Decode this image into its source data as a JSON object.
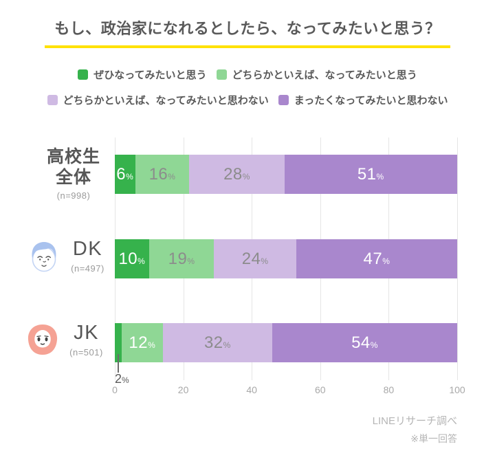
{
  "title": "もし、政治家になれるとしたら、なってみたいと思う？",
  "accent_color": "#ffe100",
  "legend": [
    {
      "label": "ぜひなってみたいと思う",
      "color": "#36b24c"
    },
    {
      "label": "どちらかといえば、なってみたいと思う",
      "color": "#8fd795"
    },
    {
      "label": "どちらかといえば、なってみたいと思わない",
      "color": "#cfbae3"
    },
    {
      "label": "まったくなってみたいと思わない",
      "color": "#a987cd"
    }
  ],
  "rows": [
    {
      "label_line1": "高校生",
      "label_line2": "全体",
      "n": "(n=998)",
      "icon": null
    },
    {
      "label_line1": "DK",
      "label_line2": null,
      "n": "(n=497)",
      "icon": "boy-face-icon"
    },
    {
      "label_line1": "JK",
      "label_line2": null,
      "n": "(n=501)",
      "icon": "girl-face-icon"
    }
  ],
  "chart_data": {
    "type": "bar",
    "orientation": "horizontal",
    "stacked": true,
    "unit": "%",
    "title": "もし、政治家になれるとしたら、なってみたいと思う？",
    "categories": [
      "高校生全体",
      "DK",
      "JK"
    ],
    "sample_sizes": [
      998,
      497,
      501
    ],
    "series": [
      {
        "name": "ぜひなってみたいと思う",
        "color": "#36b24c",
        "values": [
          6,
          10,
          2
        ]
      },
      {
        "name": "どちらかといえば、なってみたいと思う",
        "color": "#8fd795",
        "values": [
          16,
          19,
          12
        ]
      },
      {
        "name": "どちらかといえば、なってみたいと思わない",
        "color": "#cfbae3",
        "values": [
          28,
          24,
          32
        ]
      },
      {
        "name": "まったくなってみたいと思わない",
        "color": "#a987cd",
        "values": [
          51,
          47,
          54
        ]
      }
    ],
    "xlim": [
      0,
      100
    ],
    "x_ticks": [
      0,
      20,
      40,
      60,
      80,
      100
    ],
    "grid": true,
    "legend_position": "top",
    "value_label_colors": [
      [
        "#ffffff",
        "#8c8c8c",
        "#8c8c8c",
        "#ffffff"
      ],
      [
        "#ffffff",
        "#8c8c8c",
        "#8c8c8c",
        "#ffffff"
      ],
      [
        "callout",
        "#ffffff",
        "#8c8c8c",
        "#ffffff"
      ]
    ],
    "callout": {
      "row": 2,
      "segment": 0,
      "value": 2
    }
  },
  "footer": {
    "source": "LINEリサーチ調べ",
    "note": "※単一回答"
  }
}
